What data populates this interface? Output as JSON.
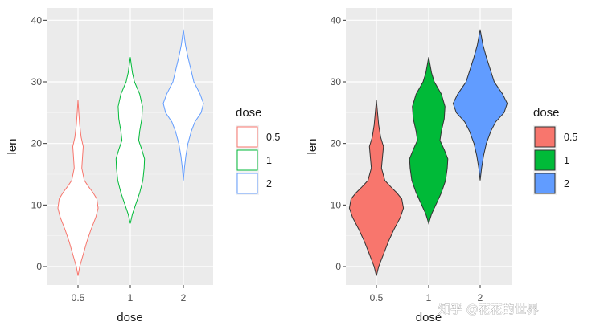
{
  "chart_data": [
    {
      "type": "violin",
      "fill": false,
      "xlabel": "dose",
      "ylabel": "len",
      "categories": [
        "0.5",
        "1",
        "2"
      ],
      "ylim": [
        -3,
        42
      ],
      "yticks": [
        "0",
        "10",
        "20",
        "30",
        "40"
      ],
      "legend": {
        "title": "dose",
        "position": "right",
        "entries": [
          "0.5",
          "1",
          "2"
        ]
      },
      "series": [
        {
          "name": "0.5",
          "color": "#F8766D",
          "min": -1.5,
          "max": 27,
          "profile": [
            [
              -1.5,
              0
            ],
            [
              0,
              0.08
            ],
            [
              2,
              0.25
            ],
            [
              4,
              0.42
            ],
            [
              6,
              0.62
            ],
            [
              8,
              0.85
            ],
            [
              9.5,
              0.96
            ],
            [
              11,
              0.9
            ],
            [
              12,
              0.72
            ],
            [
              13,
              0.5
            ],
            [
              14,
              0.3
            ],
            [
              16,
              0.18
            ],
            [
              18,
              0.22
            ],
            [
              19.5,
              0.25
            ],
            [
              21,
              0.15
            ],
            [
              23,
              0.08
            ],
            [
              25,
              0.04
            ],
            [
              27,
              0
            ]
          ]
        },
        {
          "name": "1",
          "color": "#00BA38",
          "min": 7,
          "max": 34,
          "profile": [
            [
              7,
              0
            ],
            [
              8.5,
              0.1
            ],
            [
              10,
              0.25
            ],
            [
              12,
              0.45
            ],
            [
              14,
              0.6
            ],
            [
              16,
              0.66
            ],
            [
              17.5,
              0.68
            ],
            [
              19,
              0.55
            ],
            [
              20.5,
              0.4
            ],
            [
              22,
              0.45
            ],
            [
              24,
              0.55
            ],
            [
              26,
              0.58
            ],
            [
              28,
              0.45
            ],
            [
              30,
              0.2
            ],
            [
              31.5,
              0.1
            ],
            [
              33,
              0.04
            ],
            [
              34,
              0
            ]
          ]
        },
        {
          "name": "2",
          "color": "#619CFF",
          "min": 14,
          "max": 38.5,
          "profile": [
            [
              14,
              0
            ],
            [
              16,
              0.05
            ],
            [
              18,
              0.12
            ],
            [
              20,
              0.22
            ],
            [
              22,
              0.38
            ],
            [
              23.5,
              0.55
            ],
            [
              25,
              0.85
            ],
            [
              26.5,
              0.96
            ],
            [
              28,
              0.8
            ],
            [
              30,
              0.5
            ],
            [
              32,
              0.36
            ],
            [
              34,
              0.22
            ],
            [
              36,
              0.1
            ],
            [
              37.5,
              0.04
            ],
            [
              38.5,
              0
            ]
          ]
        }
      ]
    },
    {
      "type": "violin",
      "fill": true,
      "xlabel": "dose",
      "ylabel": "len",
      "categories": [
        "0.5",
        "1",
        "2"
      ],
      "ylim": [
        -3,
        42
      ],
      "yticks": [
        "0",
        "10",
        "20",
        "30",
        "40"
      ],
      "legend": {
        "title": "dose",
        "position": "right",
        "entries": [
          "0.5",
          "1",
          "2"
        ]
      },
      "series": [
        {
          "name": "0.5",
          "color": "#F8766D",
          "min": -1.5,
          "max": 27,
          "profile": [
            [
              -1.5,
              0
            ],
            [
              0,
              0.08
            ],
            [
              2,
              0.25
            ],
            [
              4,
              0.42
            ],
            [
              6,
              0.62
            ],
            [
              8,
              0.85
            ],
            [
              9.5,
              0.96
            ],
            [
              11,
              0.9
            ],
            [
              12,
              0.72
            ],
            [
              13,
              0.5
            ],
            [
              14,
              0.3
            ],
            [
              16,
              0.18
            ],
            [
              18,
              0.22
            ],
            [
              19.5,
              0.25
            ],
            [
              21,
              0.15
            ],
            [
              23,
              0.08
            ],
            [
              25,
              0.04
            ],
            [
              27,
              0
            ]
          ]
        },
        {
          "name": "1",
          "color": "#00BA38",
          "min": 7,
          "max": 34,
          "profile": [
            [
              7,
              0
            ],
            [
              8.5,
              0.1
            ],
            [
              10,
              0.25
            ],
            [
              12,
              0.45
            ],
            [
              14,
              0.6
            ],
            [
              16,
              0.66
            ],
            [
              17.5,
              0.68
            ],
            [
              19,
              0.55
            ],
            [
              20.5,
              0.4
            ],
            [
              22,
              0.45
            ],
            [
              24,
              0.55
            ],
            [
              26,
              0.58
            ],
            [
              28,
              0.45
            ],
            [
              30,
              0.2
            ],
            [
              31.5,
              0.1
            ],
            [
              33,
              0.04
            ],
            [
              34,
              0
            ]
          ]
        },
        {
          "name": "2",
          "color": "#619CFF",
          "min": 14,
          "max": 38.5,
          "profile": [
            [
              14,
              0
            ],
            [
              16,
              0.05
            ],
            [
              18,
              0.12
            ],
            [
              20,
              0.22
            ],
            [
              22,
              0.38
            ],
            [
              23.5,
              0.55
            ],
            [
              25,
              0.85
            ],
            [
              26.5,
              0.96
            ],
            [
              28,
              0.8
            ],
            [
              30,
              0.5
            ],
            [
              32,
              0.36
            ],
            [
              34,
              0.22
            ],
            [
              36,
              0.1
            ],
            [
              37.5,
              0.04
            ],
            [
              38.5,
              0
            ]
          ]
        }
      ]
    }
  ],
  "watermark": "知乎 @花花的世界"
}
